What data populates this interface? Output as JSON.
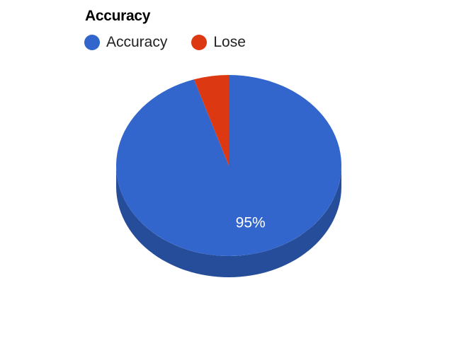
{
  "chart_data": {
    "type": "pie",
    "title": "Accuracy",
    "style": "3d",
    "legend_position": "top-left",
    "slices": [
      {
        "label": "Accuracy",
        "value": 95,
        "color": "#3366cc",
        "side_color": "#264d99",
        "data_label": "95%"
      },
      {
        "label": "Lose",
        "value": 5,
        "color": "#dc3912",
        "side_color": "#a52a0e",
        "data_label": ""
      }
    ]
  }
}
